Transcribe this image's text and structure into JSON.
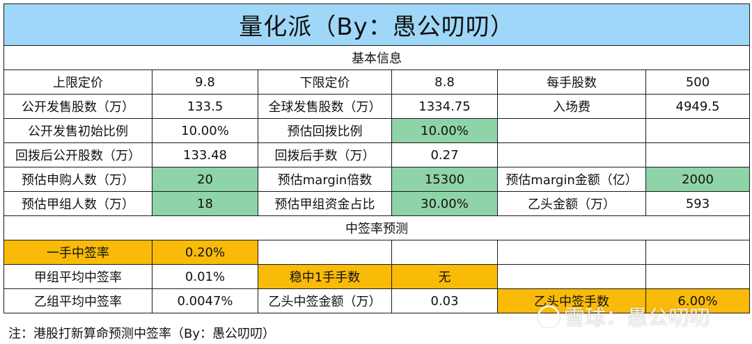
{
  "title": "量化派（By：愚公叨叨）",
  "section_basic": "基本信息",
  "section_predict": "中签率预测",
  "rows": {
    "r1": [
      "上限定价",
      "9.8",
      "下限定价",
      "8.8",
      "每手股数",
      "500"
    ],
    "r2": [
      "公开发售股数（万）",
      "133.5",
      "全球发售股数（万）",
      "1334.75",
      "入场费",
      "4949.5"
    ],
    "r3": [
      "公开发售初始比例",
      "10.00%",
      "预估回拨比例",
      "10.00%",
      "",
      ""
    ],
    "r4": [
      "回拨后公开股数（万）",
      "133.48",
      "回拨后手数（万）",
      "0.27",
      "",
      ""
    ],
    "r5": [
      "预估申购人数（万）",
      "20",
      "预估margin倍数",
      "15300",
      "预估margin金额（亿）",
      "2000"
    ],
    "r6": [
      "预估甲组人数（万）",
      "18",
      "预估甲组资金占比",
      "30.00%",
      "乙头金额（万）",
      "593"
    ],
    "r7": [
      "一手中签率",
      "0.20%",
      "",
      "",
      "",
      ""
    ],
    "r8": [
      "甲组平均中签率",
      "0.01%",
      "稳中1手手数",
      "无",
      "",
      ""
    ],
    "r9": [
      "乙组平均中签率",
      "0.0047%",
      "乙头中签金额（万）",
      "0.03",
      "乙头中签手数",
      "6.00%"
    ]
  },
  "footnote": "注：港股打新算命预测中签率（By：愚公叨叨）",
  "watermark": "雪球：愚公叨叨",
  "colors": {
    "title_bg": "#9fd7f8",
    "highlight_green": "#8fd3a8",
    "highlight_orange": "#f9bb08"
  }
}
